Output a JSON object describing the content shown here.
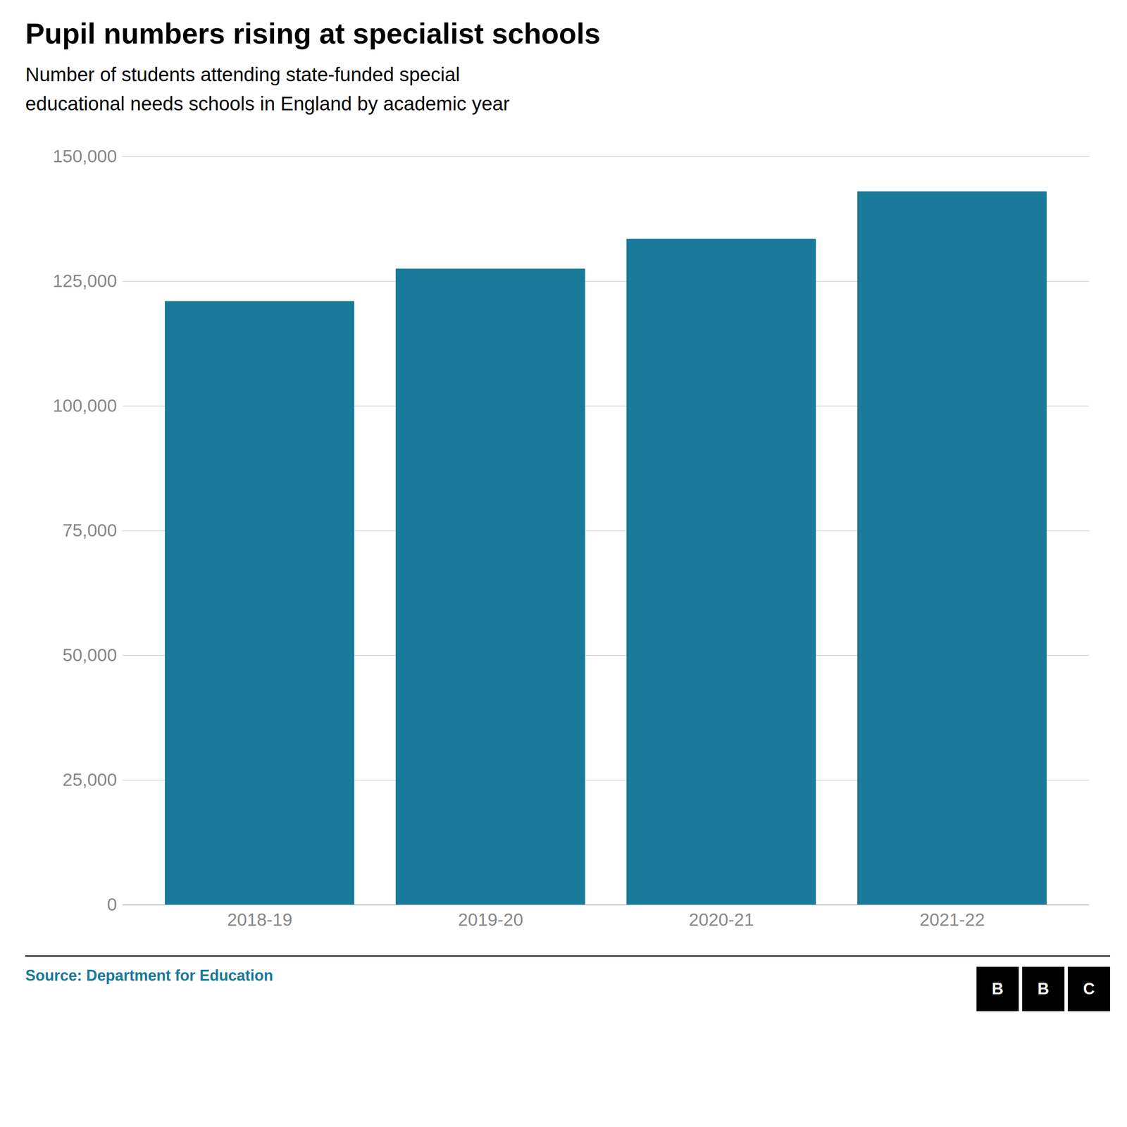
{
  "chart_data": {
    "type": "bar",
    "title": "Pupil numbers rising at specialist schools",
    "subtitle": "Number of students attending state-funded special\neducational needs schools in England by academic year",
    "categories": [
      "2018-19",
      "2019-20",
      "2020-21",
      "2021-22"
    ],
    "values": [
      121000,
      127500,
      133500,
      143000
    ],
    "color": "#1a7a9a",
    "ylim": [
      0,
      150000
    ],
    "yticks": [
      0,
      {
        "value": 25000,
        "label": "25,000"
      },
      {
        "value": 50000,
        "label": "50,000"
      },
      {
        "value": 75000,
        "label": "75,000"
      },
      {
        "value": 100000,
        "label": "100,000"
      },
      {
        "value": 125000,
        "label": "125,000"
      },
      {
        "value": 150000,
        "label": "150,000"
      }
    ],
    "grid": true,
    "source": "Source: Department for Education",
    "logo": [
      "B",
      "B",
      "C"
    ]
  }
}
